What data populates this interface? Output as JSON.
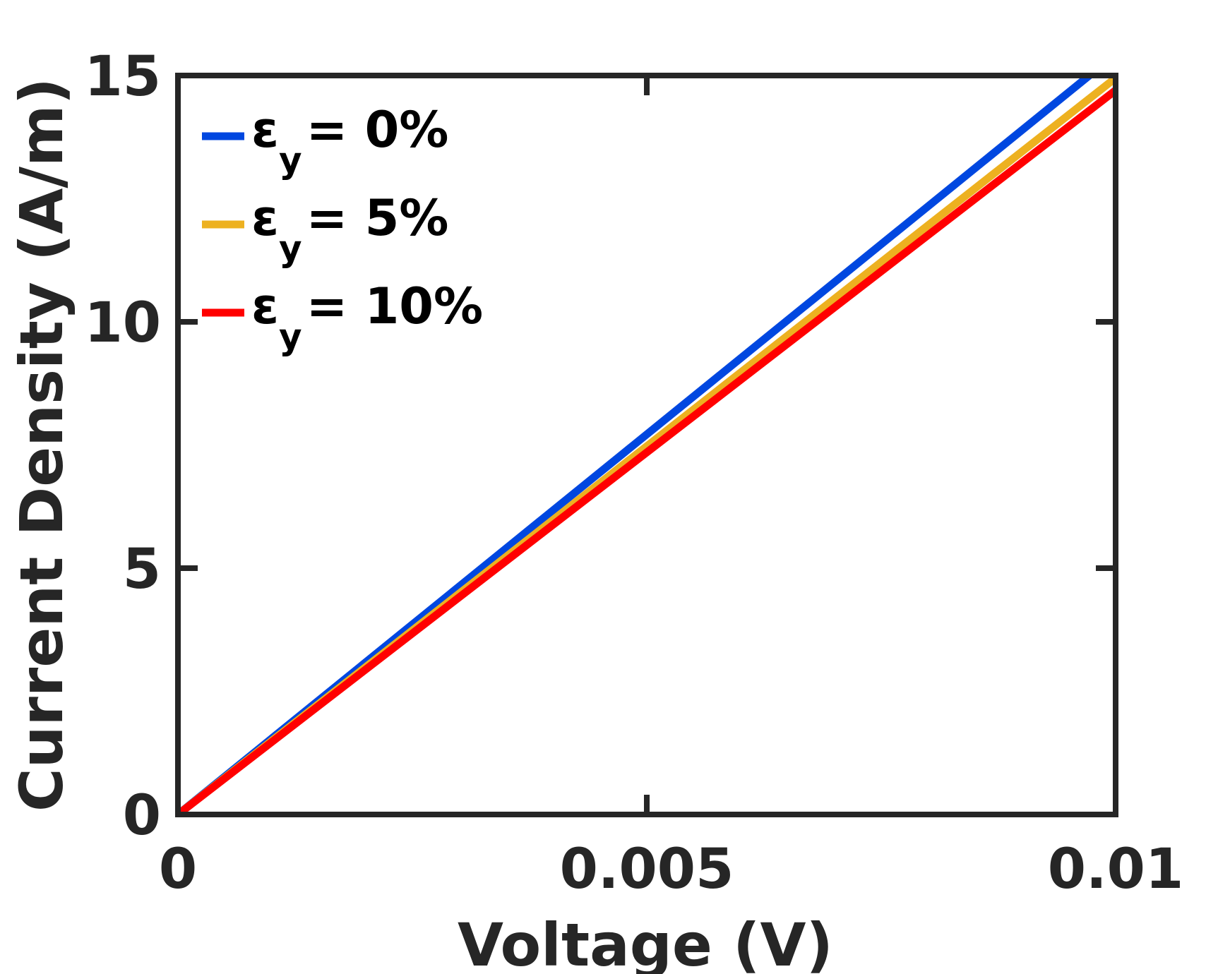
{
  "chart_data": {
    "type": "line",
    "title": "",
    "xlabel": "Voltage (V)",
    "ylabel": "Current Density (A/m)",
    "xlim": [
      0,
      0.01
    ],
    "ylim": [
      0,
      15
    ],
    "xticks": [
      0,
      0.005,
      0.01
    ],
    "xtick_labels": [
      "0",
      "0.005",
      "0.01"
    ],
    "yticks": [
      0,
      5,
      10,
      15
    ],
    "ytick_labels": [
      "0",
      "5",
      "10",
      "15"
    ],
    "grid": false,
    "legend_position": "top-left",
    "series": [
      {
        "name": "ε_y = 0%",
        "symbol": "ε",
        "sub": "y",
        "rest": "= 0%",
        "color": "#0047e0",
        "x": [
          0,
          0.00972
        ],
        "y": [
          0,
          15.0
        ]
      },
      {
        "name": "ε_y = 5%",
        "symbol": "ε",
        "sub": "y",
        "rest": "= 5%",
        "color": "#edb120",
        "x": [
          0,
          0.01
        ],
        "y": [
          0,
          14.95
        ]
      },
      {
        "name": "ε_y = 10%",
        "symbol": "ε",
        "sub": "y",
        "rest": "= 10%",
        "color": "#ff0000",
        "x": [
          0,
          0.01
        ],
        "y": [
          0,
          14.7
        ]
      }
    ]
  }
}
